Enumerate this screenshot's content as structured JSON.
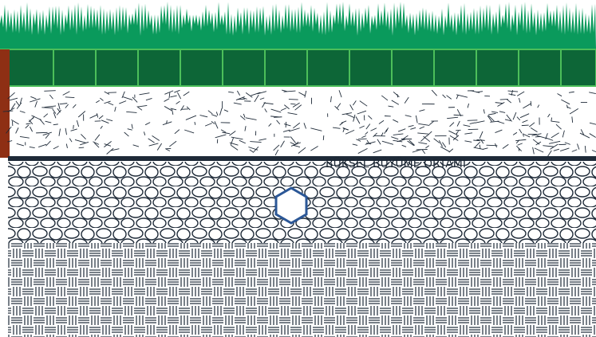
{
  "labels": {
    "growing_medium": "BÜKSEL BÜYÜME ORTAMI"
  }
}
